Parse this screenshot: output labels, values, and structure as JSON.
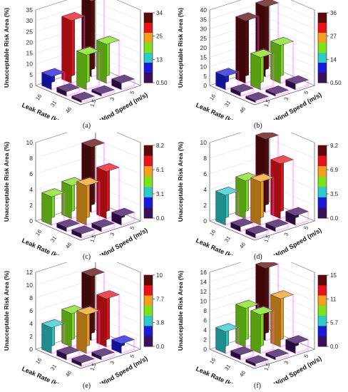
{
  "figure": {
    "captions": [
      "(a)",
      "(b)",
      "(c)",
      "(d)",
      "(e)",
      "(f)"
    ]
  },
  "colors": {
    "colorscale": [
      "#3a0f5c",
      "#1a1ad8",
      "#2ec9c9",
      "#7de21a",
      "#f2a020",
      "#e8121a",
      "#5a0a0a"
    ],
    "axis": "#333333",
    "glow": "#ff66ff"
  },
  "chart_data": [
    {
      "type": "bar3d",
      "zlabel": "Unacceptable Risk Area (%)",
      "xlabel": "Leak Rate (kg/s)",
      "ylabel": "Wind Speed (m/s)",
      "x_categories": [
        "16",
        "31",
        "46"
      ],
      "y_categories": [
        "1.5",
        "3",
        "5"
      ],
      "zlim": [
        0,
        35
      ],
      "zticks": [
        "0",
        "5",
        "10",
        "15",
        "20",
        "25",
        "30",
        "35"
      ],
      "colorbar": {
        "range": [
          0.5,
          34
        ],
        "ticks": [
          "0.50",
          "13",
          "25",
          "34"
        ]
      },
      "bars": [
        {
          "leak": "16",
          "wind": "1.5",
          "value": 6
        },
        {
          "leak": "16",
          "wind": "3",
          "value": 29
        },
        {
          "leak": "16",
          "wind": "5",
          "value": 35
        },
        {
          "leak": "31",
          "wind": "1.5",
          "value": 2
        },
        {
          "leak": "31",
          "wind": "3",
          "value": 16
        },
        {
          "leak": "31",
          "wind": "5",
          "value": 18
        },
        {
          "leak": "46",
          "wind": "1.5",
          "value": 1
        },
        {
          "leak": "46",
          "wind": "3",
          "value": 1
        },
        {
          "leak": "46",
          "wind": "5",
          "value": 3
        }
      ]
    },
    {
      "type": "bar3d",
      "zlabel": "Unacceptable Risk Area (%)",
      "xlabel": "Leak Rate (kg/s)",
      "ylabel": "Wind Speed (m/s)",
      "x_categories": [
        "16",
        "31",
        "46"
      ],
      "y_categories": [
        "1.5",
        "3",
        "5"
      ],
      "zlim": [
        0,
        40
      ],
      "zticks": [
        "0",
        "5",
        "10",
        "15",
        "20",
        "25",
        "30",
        "35",
        "40"
      ],
      "colorbar": {
        "range": [
          0.5,
          36
        ],
        "ticks": [
          "0.50",
          "14",
          "27",
          "36"
        ]
      },
      "bars": [
        {
          "leak": "16",
          "wind": "1.5",
          "value": 7
        },
        {
          "leak": "16",
          "wind": "3",
          "value": 33
        },
        {
          "leak": "16",
          "wind": "5",
          "value": 37
        },
        {
          "leak": "31",
          "wind": "1.5",
          "value": 2
        },
        {
          "leak": "31",
          "wind": "3",
          "value": 17
        },
        {
          "leak": "31",
          "wind": "5",
          "value": 20
        },
        {
          "leak": "46",
          "wind": "1.5",
          "value": 1
        },
        {
          "leak": "46",
          "wind": "3",
          "value": 1
        },
        {
          "leak": "46",
          "wind": "5",
          "value": 3
        }
      ]
    },
    {
      "type": "bar3d",
      "zlabel": "Unacceptable Risk Area (%)",
      "xlabel": "Leak Rate (kg/s)",
      "ylabel": "Wind Speed (m/s)",
      "x_categories": [
        "16",
        "31",
        "46"
      ],
      "y_categories": [
        "1.5",
        "3",
        "5"
      ],
      "zlim": [
        0,
        10
      ],
      "zticks": [
        "0",
        "2",
        "4",
        "6",
        "8",
        "10"
      ],
      "colorbar": {
        "range": [
          0,
          8.2
        ],
        "ticks": [
          "0.0",
          "3.1",
          "6.1",
          "8.2"
        ]
      },
      "bars": [
        {
          "leak": "16",
          "wind": "1.5",
          "value": 3.6
        },
        {
          "leak": "16",
          "wind": "3",
          "value": 4.2
        },
        {
          "leak": "16",
          "wind": "5",
          "value": 8.3
        },
        {
          "leak": "31",
          "wind": "1.5",
          "value": 0.5
        },
        {
          "leak": "31",
          "wind": "3",
          "value": 5.0
        },
        {
          "leak": "31",
          "wind": "5",
          "value": 6.0
        },
        {
          "leak": "46",
          "wind": "1.5",
          "value": 0.5
        },
        {
          "leak": "46",
          "wind": "3",
          "value": 0.5
        },
        {
          "leak": "46",
          "wind": "5",
          "value": 1.1
        }
      ]
    },
    {
      "type": "bar3d",
      "zlabel": "Unacceptable Risk Area (%)",
      "xlabel": "Leak Rate (kg/s)",
      "ylabel": "Wind Speed (m/s)",
      "x_categories": [
        "16",
        "31",
        "46"
      ],
      "y_categories": [
        "1.5",
        "3",
        "5"
      ],
      "zlim": [
        0,
        10
      ],
      "zticks": [
        "0",
        "2",
        "4",
        "6",
        "8",
        "10"
      ],
      "colorbar": {
        "range": [
          0,
          9.2
        ],
        "ticks": [
          "0.0",
          "3.5",
          "6.9",
          "9.2"
        ]
      },
      "bars": [
        {
          "leak": "16",
          "wind": "1.5",
          "value": 3.8
        },
        {
          "leak": "16",
          "wind": "3",
          "value": 4.8
        },
        {
          "leak": "16",
          "wind": "5",
          "value": 9.3
        },
        {
          "leak": "31",
          "wind": "1.5",
          "value": 0.6
        },
        {
          "leak": "31",
          "wind": "3",
          "value": 5.5
        },
        {
          "leak": "31",
          "wind": "5",
          "value": 7.0
        },
        {
          "leak": "46",
          "wind": "1.5",
          "value": 0.5
        },
        {
          "leak": "46",
          "wind": "3",
          "value": 0.5
        },
        {
          "leak": "46",
          "wind": "5",
          "value": 1.2
        }
      ]
    },
    {
      "type": "bar3d",
      "zlabel": "Unacceptable Risk Area (%)",
      "xlabel": "Leak Rate (kg/s)",
      "ylabel": "Wind Speed (m/s)",
      "x_categories": [
        "16",
        "31",
        "46"
      ],
      "y_categories": [
        "1.5",
        "3",
        "5"
      ],
      "zlim": [
        0,
        12
      ],
      "zticks": [
        "0",
        "2",
        "4",
        "6",
        "8",
        "10",
        "12"
      ],
      "colorbar": {
        "range": [
          0,
          10
        ],
        "ticks": [
          "0.0",
          "3.8",
          "7.7",
          "10"
        ]
      },
      "bars": [
        {
          "leak": "16",
          "wind": "1.5",
          "value": 4.0
        },
        {
          "leak": "16",
          "wind": "3",
          "value": 5.2
        },
        {
          "leak": "16",
          "wind": "5",
          "value": 10.0
        },
        {
          "leak": "31",
          "wind": "1.5",
          "value": 0.8
        },
        {
          "leak": "31",
          "wind": "3",
          "value": 6.0
        },
        {
          "leak": "31",
          "wind": "5",
          "value": 7.5
        },
        {
          "leak": "46",
          "wind": "1.5",
          "value": 0.5
        },
        {
          "leak": "46",
          "wind": "3",
          "value": 0.5
        },
        {
          "leak": "46",
          "wind": "5",
          "value": 1.5
        }
      ]
    },
    {
      "type": "bar3d",
      "zlabel": "Unacceptable Risk Area (%)",
      "xlabel": "Leak Rate (kg/s)",
      "ylabel": "Wind Speed (m/s)",
      "x_categories": [
        "16",
        "31",
        "46"
      ],
      "y_categories": [
        "1.5",
        "3",
        "5"
      ],
      "zlim": [
        0,
        16
      ],
      "zticks": [
        "0",
        "2",
        "4",
        "6",
        "8",
        "10",
        "12",
        "14",
        "16"
      ],
      "colorbar": {
        "range": [
          0,
          15
        ],
        "ticks": [
          "0.0",
          "5.7",
          "11",
          "15"
        ]
      },
      "bars": [
        {
          "leak": "16",
          "wind": "1.5",
          "value": 4.5
        },
        {
          "leak": "16",
          "wind": "3",
          "value": 8.0
        },
        {
          "leak": "16",
          "wind": "5",
          "value": 15.0
        },
        {
          "leak": "31",
          "wind": "1.5",
          "value": 1.0
        },
        {
          "leak": "31",
          "wind": "3",
          "value": 8.0
        },
        {
          "leak": "31",
          "wind": "5",
          "value": 10.0
        },
        {
          "leak": "46",
          "wind": "1.5",
          "value": 0.5
        },
        {
          "leak": "46",
          "wind": "3",
          "value": 0.5
        },
        {
          "leak": "46",
          "wind": "5",
          "value": 2.0
        }
      ]
    }
  ]
}
